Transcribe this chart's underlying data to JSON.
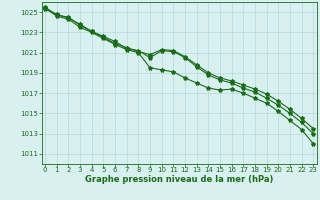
{
  "line1": [
    1025.3,
    1024.8,
    1024.4,
    1023.8,
    1023.1,
    1022.5,
    1021.9,
    1021.5,
    1021.1,
    1020.8,
    1021.3,
    1021.2,
    1020.6,
    1019.8,
    1019.0,
    1018.5,
    1018.2,
    1017.8,
    1017.4,
    1016.9,
    1016.2,
    1015.4,
    1014.5,
    1013.5
  ],
  "line2": [
    1025.5,
    1024.7,
    1024.5,
    1023.7,
    1023.1,
    1022.6,
    1022.1,
    1021.4,
    1021.2,
    1020.5,
    1021.2,
    1021.1,
    1020.5,
    1019.6,
    1018.8,
    1018.3,
    1018.0,
    1017.5,
    1017.1,
    1016.5,
    1015.8,
    1015.0,
    1014.1,
    1013.0
  ],
  "line3": [
    1025.4,
    1024.6,
    1024.3,
    1023.5,
    1023.0,
    1022.4,
    1021.8,
    1021.3,
    1021.0,
    1019.5,
    1019.3,
    1019.1,
    1018.5,
    1018.0,
    1017.5,
    1017.3,
    1017.4,
    1017.0,
    1016.5,
    1016.0,
    1015.2,
    1014.3,
    1013.4,
    1012.0
  ],
  "x": [
    0,
    1,
    2,
    3,
    4,
    5,
    6,
    7,
    8,
    9,
    10,
    11,
    12,
    13,
    14,
    15,
    16,
    17,
    18,
    19,
    20,
    21,
    22,
    23
  ],
  "line_color": "#1a6b1a",
  "bg_color": "#d8f0f0",
  "grid_color": "#b8d8d8",
  "xlabel": "Graphe pression niveau de la mer (hPa)",
  "ylim": [
    1010.0,
    1026.0
  ],
  "yticks": [
    1011,
    1013,
    1015,
    1017,
    1019,
    1021,
    1023,
    1025
  ],
  "xticks": [
    0,
    1,
    2,
    3,
    4,
    5,
    6,
    7,
    8,
    9,
    10,
    11,
    12,
    13,
    14,
    15,
    16,
    17,
    18,
    19,
    20,
    21,
    22,
    23
  ],
  "tick_fontsize": 5.0,
  "xlabel_fontsize": 6.0
}
